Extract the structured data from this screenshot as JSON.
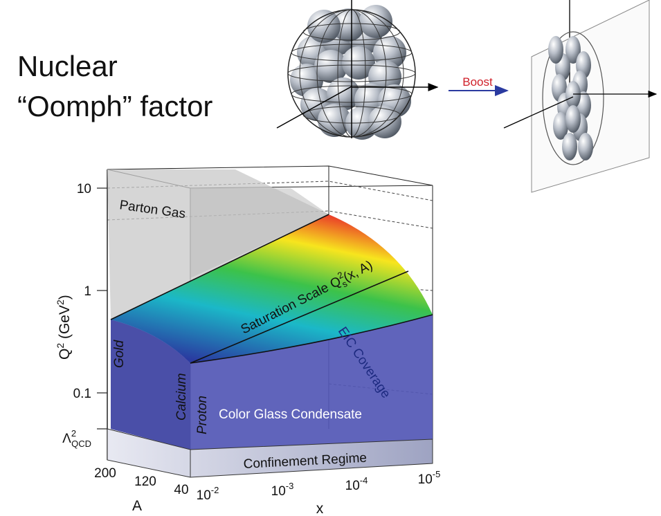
{
  "header": {
    "line1": "Nuclear",
    "line2": "“Oomph” factor"
  },
  "boost_label": "Boost",
  "plot": {
    "y_axis_label": {
      "q": "Q",
      "sup1": "2",
      "mid": " (GeV",
      "sup2": "2",
      "end": ")"
    },
    "y_ticks": [
      "10",
      "1",
      "0.1"
    ],
    "lambda_qcd": {
      "base": "Λ",
      "sup": "2",
      "sub": "QCD"
    },
    "a_axis_label": "A",
    "a_ticks": [
      "200",
      "120",
      "40"
    ],
    "x_axis_label": "x",
    "x_ticks": [
      {
        "base": "10",
        "exp": "-2"
      },
      {
        "base": "10",
        "exp": "-3"
      },
      {
        "base": "10",
        "exp": "-4"
      },
      {
        "base": "10",
        "exp": "-5"
      }
    ],
    "regions": {
      "parton_gas": "Parton Gas",
      "saturation": {
        "text": "Saturation Scale Q",
        "sup": "2",
        "sub": "s",
        "end": "(x, A)"
      },
      "eic_coverage": "EIC Coverage",
      "gold": "Gold",
      "calcium": "Calcium",
      "proton": "Proton",
      "cgc": "Color Glass Condensate",
      "confinement": "Confinement Regime"
    }
  }
}
